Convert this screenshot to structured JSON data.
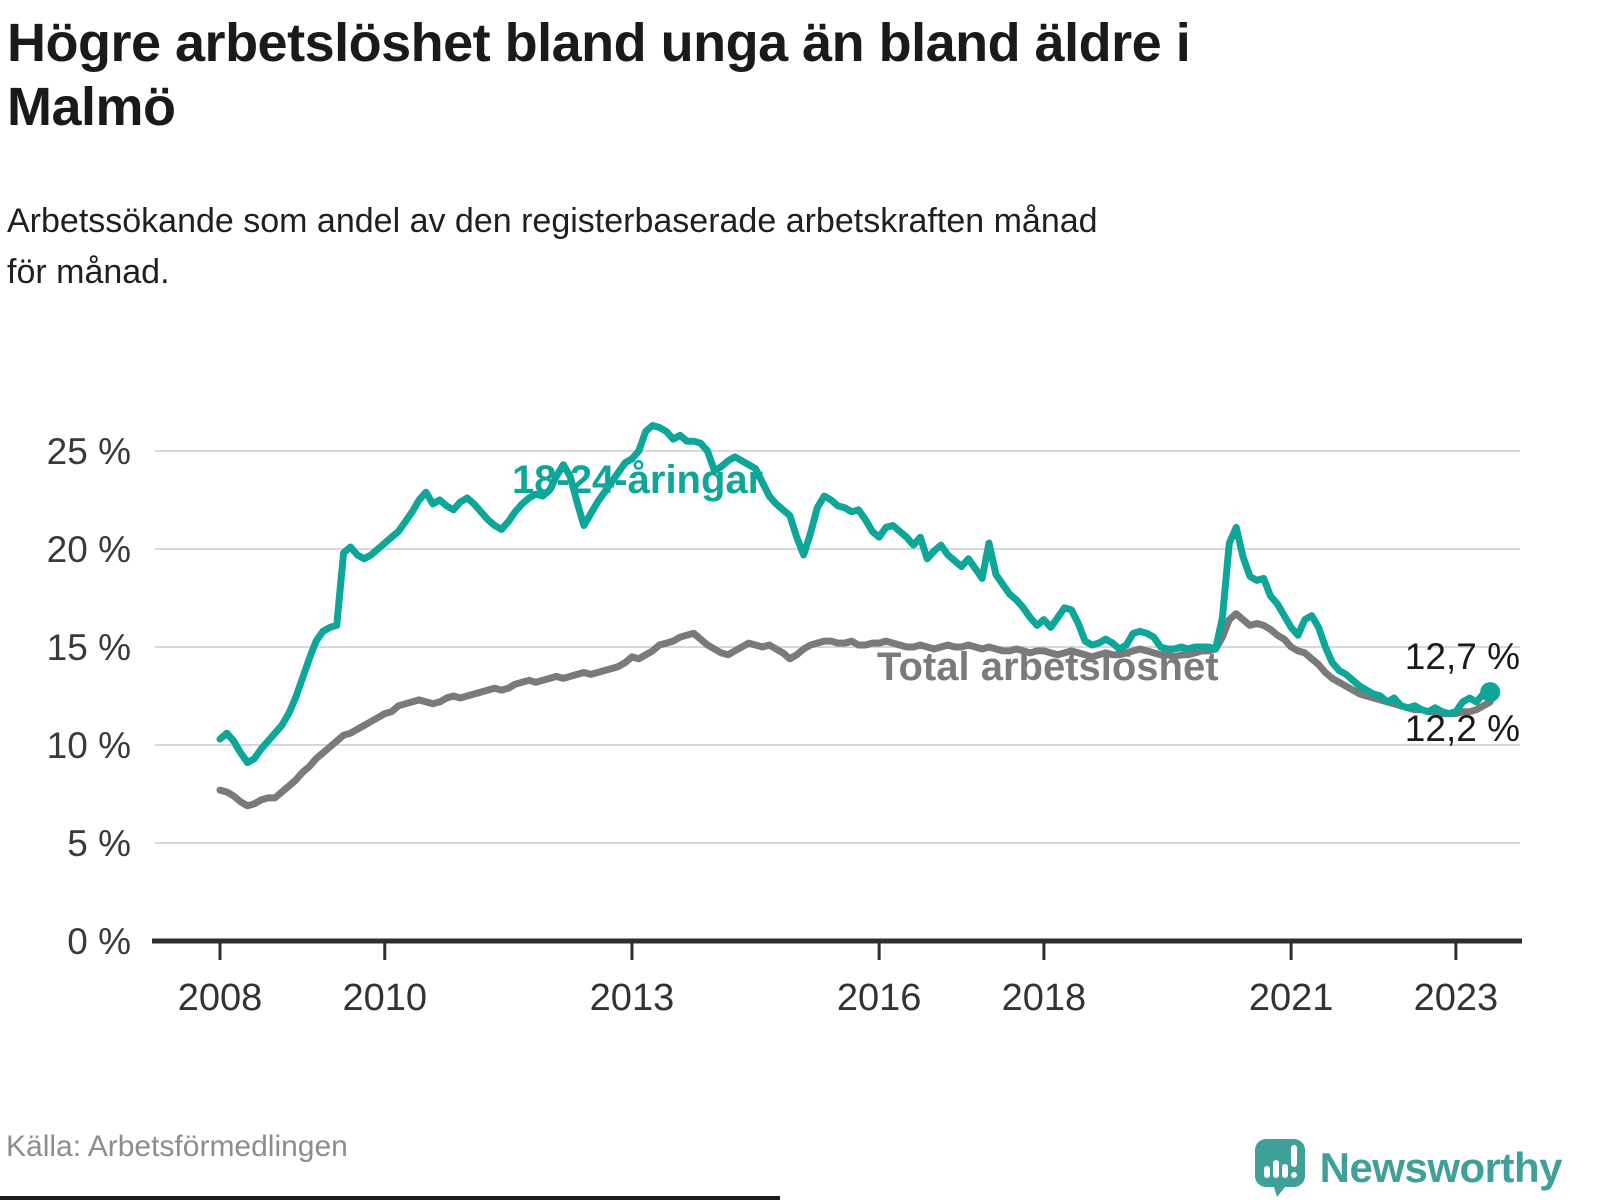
{
  "header": {
    "title": "Högre arbetslöshet bland unga än bland äldre i\nMalmö",
    "subtitle": "Arbetssökande som andel av den registerbaserade arbetskraften månad\nför månad."
  },
  "footer": {
    "source": "Källa: Arbetsförmedlingen",
    "logo_text": "Newsworthy"
  },
  "chart_data": {
    "type": "line",
    "title": "Högre arbetslöshet bland unga än bland äldre i Malmö",
    "subtitle": "Arbetssökande som andel av den registerbaserade arbetskraften månad för månad.",
    "x_unit": "month",
    "x_start": "2008-01",
    "x_end": "2023-06",
    "ylim": [
      0,
      27
    ],
    "grid": true,
    "legend_position": "inline-labels",
    "y_axis": {
      "ticks": [
        {
          "value": 0,
          "label": "0 %"
        },
        {
          "value": 5,
          "label": "5 %"
        },
        {
          "value": 10,
          "label": "10 %"
        },
        {
          "value": 15,
          "label": "15 %"
        },
        {
          "value": 20,
          "label": "20 %"
        },
        {
          "value": 25,
          "label": "25 %"
        }
      ]
    },
    "x_axis": {
      "ticks": [
        {
          "year": 2008,
          "label": "2008"
        },
        {
          "year": 2010,
          "label": "2010"
        },
        {
          "year": 2013,
          "label": "2013"
        },
        {
          "year": 2016,
          "label": "2016"
        },
        {
          "year": 2018,
          "label": "2018"
        },
        {
          "year": 2021,
          "label": "2021"
        },
        {
          "year": 2023,
          "label": "2023"
        }
      ]
    },
    "series_labels": {
      "young": "18-24-åringar",
      "total": "Total arbetslöshet"
    },
    "end_labels": {
      "young": "12,7 %",
      "total": "12,2 %"
    },
    "colors": {
      "young": "#0da698",
      "total": "#7a7a7a",
      "axis": "#2e2e2e",
      "grid": "#d8d8d8",
      "logo": "#3fa099"
    },
    "series": [
      {
        "id": "total",
        "name": "Total arbetslöshet",
        "color": "#7a7a7a",
        "end_value": 12.2,
        "values": [
          7.7,
          7.6,
          7.4,
          7.1,
          6.9,
          7.0,
          7.2,
          7.3,
          7.3,
          7.6,
          7.9,
          8.2,
          8.6,
          8.9,
          9.3,
          9.6,
          9.9,
          10.2,
          10.5,
          10.6,
          10.8,
          11.0,
          11.2,
          11.4,
          11.6,
          11.7,
          12.0,
          12.1,
          12.2,
          12.3,
          12.2,
          12.1,
          12.2,
          12.4,
          12.5,
          12.4,
          12.5,
          12.6,
          12.7,
          12.8,
          12.9,
          12.8,
          12.9,
          13.1,
          13.2,
          13.3,
          13.2,
          13.3,
          13.4,
          13.5,
          13.4,
          13.5,
          13.6,
          13.7,
          13.6,
          13.7,
          13.8,
          13.9,
          14.0,
          14.2,
          14.5,
          14.4,
          14.6,
          14.8,
          15.1,
          15.2,
          15.3,
          15.5,
          15.6,
          15.7,
          15.4,
          15.1,
          14.9,
          14.7,
          14.6,
          14.8,
          15.0,
          15.2,
          15.1,
          15.0,
          15.1,
          14.9,
          14.7,
          14.4,
          14.6,
          14.9,
          15.1,
          15.2,
          15.3,
          15.3,
          15.2,
          15.2,
          15.3,
          15.1,
          15.1,
          15.2,
          15.2,
          15.3,
          15.2,
          15.1,
          15.0,
          15.0,
          15.1,
          15.0,
          14.9,
          15.0,
          15.1,
          15.0,
          15.0,
          15.1,
          15.0,
          14.9,
          15.0,
          14.9,
          14.8,
          14.8,
          14.9,
          14.8,
          14.7,
          14.8,
          14.8,
          14.7,
          14.6,
          14.7,
          14.8,
          14.7,
          14.6,
          14.5,
          14.6,
          14.7,
          14.6,
          14.6,
          14.7,
          14.8,
          14.9,
          14.8,
          14.7,
          14.6,
          14.6,
          14.5,
          14.6,
          14.6,
          14.7,
          14.8,
          14.8,
          14.9,
          15.5,
          16.4,
          16.7,
          16.4,
          16.1,
          16.2,
          16.1,
          15.9,
          15.6,
          15.4,
          15.0,
          14.8,
          14.7,
          14.4,
          14.1,
          13.7,
          13.4,
          13.2,
          13.0,
          12.8,
          12.6,
          12.5,
          12.4,
          12.3,
          12.2,
          12.1,
          12.0,
          11.9,
          11.8,
          11.8,
          11.7,
          11.7,
          11.6,
          11.6,
          11.6,
          11.7,
          11.7,
          11.8,
          12.0,
          12.2
        ]
      },
      {
        "id": "young",
        "name": "18-24-åringar",
        "color": "#0da698",
        "end_dot": true,
        "end_value": 12.7,
        "values": [
          10.3,
          10.6,
          10.2,
          9.6,
          9.1,
          9.3,
          9.8,
          10.2,
          10.6,
          11.0,
          11.6,
          12.4,
          13.4,
          14.4,
          15.3,
          15.8,
          16.0,
          16.1,
          19.8,
          20.1,
          19.7,
          19.5,
          19.7,
          20.0,
          20.3,
          20.6,
          20.9,
          21.4,
          21.9,
          22.5,
          22.9,
          22.3,
          22.5,
          22.2,
          22.0,
          22.4,
          22.6,
          22.3,
          21.9,
          21.5,
          21.2,
          21.0,
          21.4,
          21.9,
          22.3,
          22.6,
          22.8,
          22.7,
          23.0,
          23.7,
          24.3,
          23.7,
          22.4,
          21.2,
          21.8,
          22.4,
          22.9,
          23.4,
          23.9,
          24.4,
          24.6,
          25.0,
          26.0,
          26.3,
          26.2,
          26.0,
          25.6,
          25.8,
          25.5,
          25.5,
          25.4,
          25.0,
          24.0,
          24.2,
          24.5,
          24.7,
          24.5,
          24.3,
          24.1,
          23.4,
          22.7,
          22.3,
          22.0,
          21.7,
          20.6,
          19.7,
          20.8,
          22.1,
          22.7,
          22.5,
          22.2,
          22.1,
          21.9,
          22.0,
          21.5,
          20.9,
          20.6,
          21.1,
          21.2,
          20.9,
          20.6,
          20.2,
          20.6,
          19.5,
          19.9,
          20.2,
          19.7,
          19.4,
          19.1,
          19.5,
          19.0,
          18.5,
          20.3,
          18.7,
          18.2,
          17.7,
          17.4,
          17.0,
          16.5,
          16.1,
          16.4,
          16.0,
          16.5,
          17.0,
          16.9,
          16.2,
          15.3,
          15.1,
          15.2,
          15.4,
          15.2,
          14.9,
          15.1,
          15.7,
          15.8,
          15.7,
          15.5,
          15.0,
          14.9,
          14.9,
          15.0,
          14.9,
          15.0,
          15.0,
          15.0,
          14.9,
          16.5,
          20.3,
          21.1,
          19.6,
          18.6,
          18.4,
          18.5,
          17.6,
          17.2,
          16.6,
          16.0,
          15.6,
          16.4,
          16.6,
          16.0,
          15.0,
          14.2,
          13.8,
          13.6,
          13.3,
          13.0,
          12.8,
          12.6,
          12.5,
          12.2,
          12.4,
          12.0,
          11.9,
          12.0,
          11.8,
          11.7,
          11.9,
          11.7,
          11.6,
          11.7,
          12.2,
          12.4,
          12.2,
          12.6,
          12.7
        ]
      }
    ]
  }
}
